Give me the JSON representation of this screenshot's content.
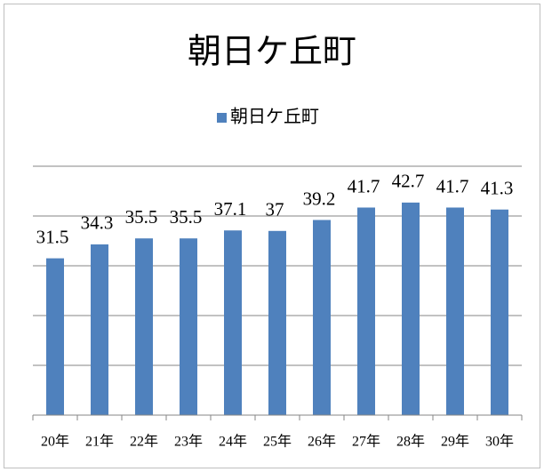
{
  "chart_data": {
    "type": "bar",
    "title": "朝日ケ丘町",
    "categories": [
      "20年",
      "21年",
      "22年",
      "23年",
      "24年",
      "25年",
      "26年",
      "27年",
      "28年",
      "29年",
      "30年"
    ],
    "series": [
      {
        "name": "朝日ケ丘町",
        "color": "#4f81bd",
        "values": [
          31.5,
          34.3,
          35.5,
          35.5,
          37.1,
          37,
          39.2,
          41.7,
          42.7,
          41.7,
          41.3
        ]
      }
    ],
    "ylim": [
      0,
      50
    ],
    "yticks": [
      0,
      10,
      20,
      30,
      40,
      50
    ],
    "grid": true,
    "legend": "top"
  }
}
